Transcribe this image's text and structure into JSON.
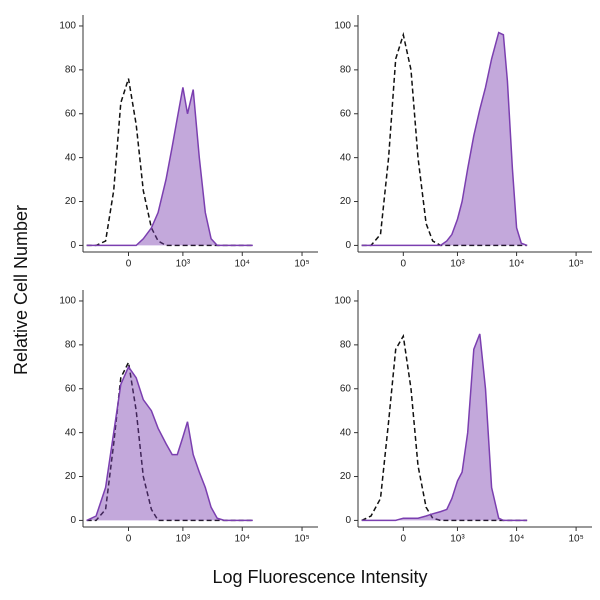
{
  "xlabel": "Log Fluorescence Intensity",
  "ylabel": "Relative Cell Number",
  "chart_data": [
    {
      "type": "area",
      "x": [
        -600,
        -400,
        -250,
        -150,
        -75,
        0,
        75,
        150,
        250,
        350,
        500,
        650,
        800,
        1000,
        1200,
        1500,
        1900,
        2400,
        3000,
        3800,
        5000,
        6000,
        7000,
        8500,
        10000,
        12000,
        15000
      ],
      "series": [
        {
          "style": "dashed",
          "color": "#111111",
          "values": [
            0,
            0,
            2,
            25,
            65,
            76,
            55,
            25,
            8,
            2,
            0,
            0,
            0,
            0,
            0,
            0,
            0,
            0,
            0,
            0,
            0,
            0,
            0,
            0,
            0,
            0,
            0
          ]
        },
        {
          "style": "filled",
          "color": "#7b3fb0",
          "values": [
            0,
            0,
            0,
            0,
            0,
            0,
            0,
            3,
            8,
            15,
            30,
            45,
            58,
            72,
            60,
            71,
            40,
            15,
            3,
            0,
            0,
            0,
            0,
            0,
            0,
            0,
            0
          ]
        }
      ],
      "xlim": [
        -700,
        185000
      ],
      "xticks": [
        {
          "value": 0,
          "label": "0"
        },
        {
          "value": 1000,
          "label": "10³"
        },
        {
          "value": 10000,
          "label": "10⁴"
        },
        {
          "value": 100000,
          "label": "10⁵"
        }
      ],
      "ylim": [
        -3,
        105
      ],
      "yticks": [
        0,
        20,
        40,
        60,
        80,
        100
      ]
    },
    {
      "type": "area",
      "x": [
        -600,
        -400,
        -250,
        -150,
        -75,
        0,
        75,
        150,
        250,
        350,
        500,
        650,
        800,
        1000,
        1200,
        1500,
        1900,
        2400,
        3000,
        3800,
        5000,
        6000,
        7000,
        8500,
        10000,
        12000,
        15000
      ],
      "series": [
        {
          "style": "dashed",
          "color": "#111111",
          "values": [
            0,
            0,
            5,
            40,
            85,
            96,
            80,
            40,
            10,
            2,
            0,
            0,
            0,
            0,
            0,
            0,
            0,
            0,
            0,
            0,
            0,
            0,
            0,
            0,
            0,
            0,
            0
          ]
        },
        {
          "style": "filled",
          "color": "#7b3fb0",
          "values": [
            0,
            0,
            0,
            0,
            0,
            0,
            0,
            0,
            0,
            0,
            0,
            2,
            5,
            12,
            20,
            35,
            50,
            62,
            72,
            85,
            97,
            96,
            75,
            35,
            8,
            1,
            0
          ]
        }
      ],
      "xlim": [
        -700,
        185000
      ],
      "xticks": [
        {
          "value": 0,
          "label": "0"
        },
        {
          "value": 1000,
          "label": "10³"
        },
        {
          "value": 10000,
          "label": "10⁴"
        },
        {
          "value": 100000,
          "label": "10⁵"
        }
      ],
      "ylim": [
        -3,
        105
      ],
      "yticks": [
        0,
        20,
        40,
        60,
        80,
        100
      ]
    },
    {
      "type": "area",
      "x": [
        -600,
        -400,
        -250,
        -150,
        -75,
        0,
        75,
        150,
        250,
        350,
        500,
        650,
        800,
        1000,
        1200,
        1500,
        1900,
        2400,
        3000,
        3800,
        5000,
        6000,
        7000,
        8500,
        10000,
        12000,
        15000
      ],
      "series": [
        {
          "style": "dashed",
          "color": "#111111",
          "values": [
            0,
            0,
            5,
            35,
            65,
            72,
            50,
            20,
            5,
            0,
            0,
            0,
            0,
            0,
            0,
            0,
            0,
            0,
            0,
            0,
            0,
            0,
            0,
            0,
            0,
            0,
            0
          ]
        },
        {
          "style": "filled",
          "color": "#7b3fb0",
          "values": [
            0,
            2,
            15,
            40,
            62,
            70,
            65,
            55,
            50,
            42,
            35,
            30,
            30,
            38,
            45,
            30,
            22,
            15,
            6,
            1,
            0,
            0,
            0,
            0,
            0,
            0,
            0
          ]
        }
      ],
      "xlim": [
        -700,
        185000
      ],
      "xticks": [
        {
          "value": 0,
          "label": "0"
        },
        {
          "value": 1000,
          "label": "10³"
        },
        {
          "value": 10000,
          "label": "10⁴"
        },
        {
          "value": 100000,
          "label": "10⁵"
        }
      ],
      "ylim": [
        -3,
        105
      ],
      "yticks": [
        0,
        20,
        40,
        60,
        80,
        100
      ]
    },
    {
      "type": "area",
      "x": [
        -600,
        -400,
        -250,
        -150,
        -75,
        0,
        75,
        150,
        250,
        350,
        500,
        650,
        800,
        1000,
        1200,
        1500,
        1900,
        2400,
        3000,
        3800,
        5000,
        6000,
        7000,
        8500,
        10000,
        12000,
        15000
      ],
      "series": [
        {
          "style": "dashed",
          "color": "#111111",
          "values": [
            0,
            2,
            10,
            45,
            78,
            84,
            60,
            25,
            6,
            1,
            0,
            0,
            0,
            0,
            0,
            0,
            0,
            0,
            0,
            0,
            0,
            0,
            0,
            0,
            0,
            0,
            0
          ]
        },
        {
          "style": "filled",
          "color": "#7b3fb0",
          "values": [
            0,
            0,
            0,
            0,
            0,
            1,
            1,
            1,
            2,
            3,
            4,
            5,
            10,
            18,
            22,
            40,
            78,
            85,
            60,
            15,
            1,
            0,
            0,
            0,
            0,
            0,
            0
          ]
        }
      ],
      "xlim": [
        -700,
        185000
      ],
      "xticks": [
        {
          "value": 0,
          "label": "0"
        },
        {
          "value": 1000,
          "label": "10³"
        },
        {
          "value": 10000,
          "label": "10⁴"
        },
        {
          "value": 100000,
          "label": "10⁵"
        }
      ],
      "ylim": [
        -3,
        105
      ],
      "yticks": [
        0,
        20,
        40,
        60,
        80,
        100
      ]
    }
  ]
}
